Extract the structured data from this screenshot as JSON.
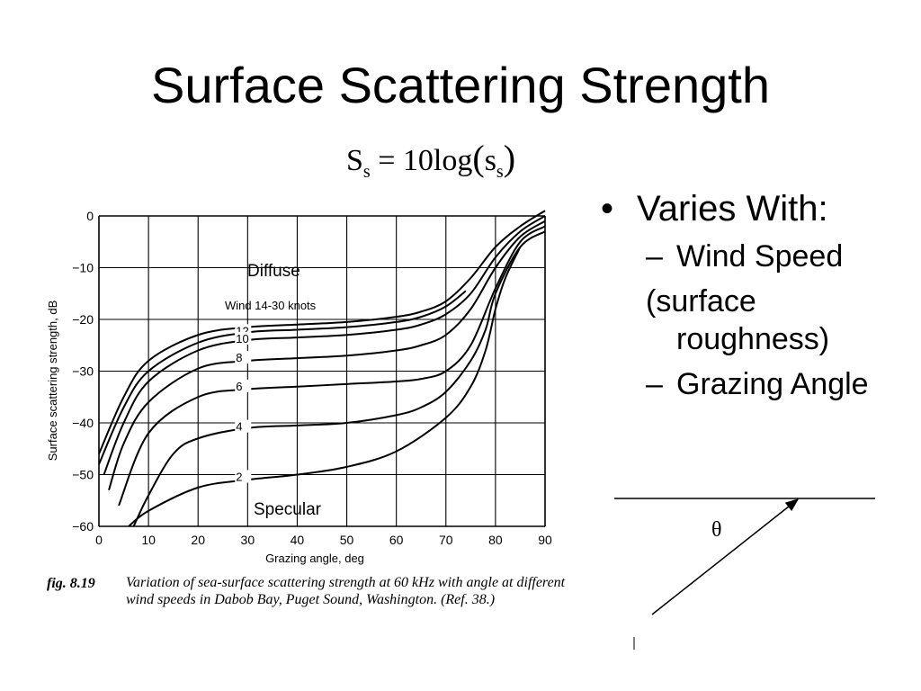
{
  "slide": {
    "title": "Surface Scattering Strength",
    "formula": {
      "lhs": "S",
      "lhs_sub": "s",
      "equals": " = ",
      "rhs": "10log",
      "arg": "s",
      "arg_sub": "s"
    },
    "bullets": {
      "main": "Varies With:",
      "sub1": "Wind Speed",
      "sub1_paren": "(surface roughness)",
      "sub2": "Grazing Angle"
    },
    "diagram": {
      "theta": "θ"
    },
    "bullet_glyph": "•",
    "dash_glyph": "–"
  },
  "chart_data": {
    "type": "line",
    "xlabel": "Grazing angle, deg",
    "ylabel": "Surface scattering strength, dB",
    "xlim": [
      0,
      90
    ],
    "ylim": [
      -60,
      0
    ],
    "xticks": [
      0,
      10,
      20,
      30,
      40,
      50,
      60,
      70,
      80,
      90
    ],
    "yticks": [
      0,
      -10,
      -20,
      -30,
      -40,
      -50,
      -60
    ],
    "grid": true,
    "annotations": {
      "top_label": "Wind 14-30 knots",
      "diffuse": "Diffuse",
      "specular": "Specular"
    },
    "caption": {
      "fig_label": "fig. 8.19",
      "text": "Variation of sea-surface scattering strength at 60 kHz with angle at different wind speeds in Dabob Bay, Puget Sound, Washington. (Ref. 38.)"
    },
    "series": [
      {
        "name": "Wind 14-30 knots",
        "x": [
          0,
          5,
          10,
          20,
          30,
          40,
          50,
          60,
          65,
          70,
          75,
          80,
          85,
          90
        ],
        "y": [
          -46,
          -35,
          -28,
          -23,
          -21.5,
          -21,
          -20.5,
          -19.5,
          -18.5,
          -16.5,
          -12,
          -6,
          -2,
          1
        ]
      },
      {
        "name": "12",
        "x": [
          0,
          5,
          10,
          20,
          30,
          40,
          50,
          60,
          65,
          70,
          74
        ],
        "y": [
          -48,
          -37,
          -30,
          -24.5,
          -22.5,
          -22,
          -21.5,
          -20.5,
          -19.5,
          -17.5,
          -14.5
        ]
      },
      {
        "name": "10",
        "x": [
          1,
          5,
          10,
          20,
          30,
          40,
          50,
          60,
          65,
          70,
          75,
          80,
          85,
          90
        ],
        "y": [
          -50,
          -40,
          -32,
          -26,
          -24,
          -23.5,
          -23,
          -22,
          -21,
          -19,
          -15,
          -8,
          -3,
          0
        ]
      },
      {
        "name": "8",
        "x": [
          2,
          5,
          10,
          20,
          30,
          40,
          50,
          60,
          65,
          70,
          75,
          80,
          85,
          90
        ],
        "y": [
          -53,
          -44,
          -36,
          -29.5,
          -28,
          -27.5,
          -27,
          -26,
          -25,
          -23,
          -18,
          -10,
          -4,
          -1
        ]
      },
      {
        "name": "6",
        "x": [
          4,
          10,
          20,
          30,
          40,
          50,
          60,
          65,
          70,
          75,
          80,
          85,
          90
        ],
        "y": [
          -56,
          -42,
          -35,
          -33.5,
          -33,
          -32.5,
          -32,
          -31.5,
          -30,
          -25,
          -14,
          -5,
          -2
        ]
      },
      {
        "name": "4",
        "x": [
          7,
          10,
          15,
          20,
          30,
          40,
          50,
          60,
          65,
          70,
          75,
          78,
          80,
          85,
          90
        ],
        "y": [
          -60,
          -54,
          -46,
          -43,
          -41,
          -40.5,
          -40,
          -38.5,
          -37,
          -34,
          -28,
          -22,
          -15,
          -6,
          -3
        ]
      },
      {
        "name": "2",
        "x": [
          6,
          10,
          20,
          30,
          40,
          50,
          60,
          70,
          75,
          78,
          80,
          82,
          85
        ],
        "y": [
          -60,
          -57,
          -52.5,
          -51,
          -50,
          -48.5,
          -45.5,
          -39,
          -33,
          -26,
          -18,
          -12,
          -6
        ]
      }
    ]
  }
}
